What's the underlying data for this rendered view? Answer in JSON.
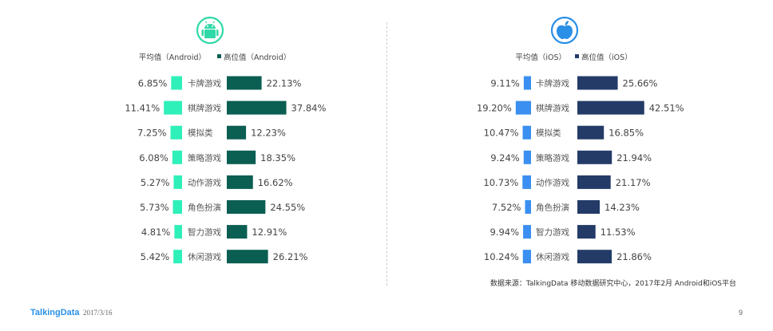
{
  "chart_data": [
    {
      "type": "bar",
      "platform_icon": "android-icon",
      "series": [
        {
          "name": "平均值（Android）",
          "color": "#2ef0b8",
          "values": [
            6.85,
            11.41,
            7.25,
            6.08,
            5.27,
            5.73,
            4.81,
            5.42
          ]
        },
        {
          "name": "高位值（Android）",
          "color": "#0b5e52",
          "values": [
            22.13,
            37.84,
            12.23,
            18.35,
            16.62,
            24.55,
            12.91,
            26.21
          ]
        }
      ],
      "categories": [
        "卡牌游戏",
        "棋牌游戏",
        "模拟类",
        "策略游戏",
        "动作游戏",
        "角色扮演",
        "智力游戏",
        "休闲游戏"
      ],
      "value_suffix": "%",
      "accent_color": "#2fd9a7"
    },
    {
      "type": "bar",
      "platform_icon": "apple-icon",
      "series": [
        {
          "name": "平均值（iOS）",
          "color": "#3b8ff0",
          "values": [
            9.11,
            19.2,
            10.47,
            9.24,
            10.73,
            7.52,
            9.94,
            10.24
          ]
        },
        {
          "name": "高位值（iOS）",
          "color": "#243b68",
          "values": [
            25.66,
            42.51,
            16.85,
            21.94,
            21.17,
            14.23,
            11.53,
            21.86
          ]
        }
      ],
      "categories": [
        "卡牌游戏",
        "棋牌游戏",
        "模拟类",
        "策略游戏",
        "动作游戏",
        "角色扮演",
        "智力游戏",
        "休闲游戏"
      ],
      "value_suffix": "%",
      "accent_color": "#2a8fe6"
    }
  ],
  "source": "数据来源：TalkingData 移动数据研究中心，2017年2月 Android和iOS平台",
  "footer": {
    "brand": "TalkingData",
    "date": "2017/3/16",
    "page": "9"
  }
}
